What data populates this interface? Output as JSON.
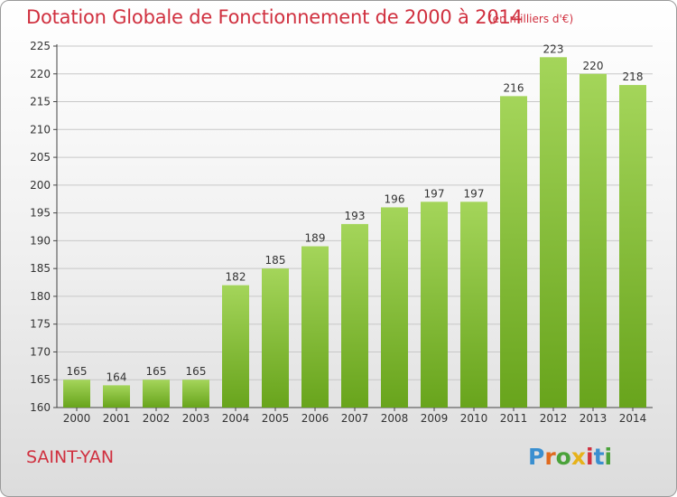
{
  "header": {
    "title": "Dotation Globale de Fonctionnement de 2000 à 2014",
    "subtitle": "(en milliers d'€)"
  },
  "footer": {
    "town": "SAINT-YAN",
    "logo_letters": [
      "P",
      "r",
      "o",
      "x",
      "i",
      "t",
      "i"
    ],
    "logo_colors": [
      "#3a8fd0",
      "#e06a1e",
      "#4aa23a",
      "#e6b21a",
      "#d0303f",
      "#3a8fd0",
      "#4aa23a"
    ]
  },
  "chart_data": {
    "type": "bar",
    "title": "Dotation Globale de Fonctionnement de 2000 à 2014",
    "categories": [
      "2000",
      "2001",
      "2002",
      "2003",
      "2004",
      "2005",
      "2006",
      "2007",
      "2008",
      "2009",
      "2010",
      "2011",
      "2012",
      "2013",
      "2014"
    ],
    "values": [
      165,
      164,
      165,
      165,
      182,
      185,
      189,
      193,
      196,
      197,
      197,
      216,
      223,
      220,
      218
    ],
    "ylim": [
      160,
      225
    ],
    "yticks": [
      160,
      165,
      170,
      175,
      180,
      185,
      190,
      195,
      200,
      205,
      210,
      215,
      220,
      225
    ],
    "grid": true,
    "bar_color_top": "#a4d55a",
    "bar_color_bottom": "#68a41c",
    "label_color": "#333333"
  }
}
